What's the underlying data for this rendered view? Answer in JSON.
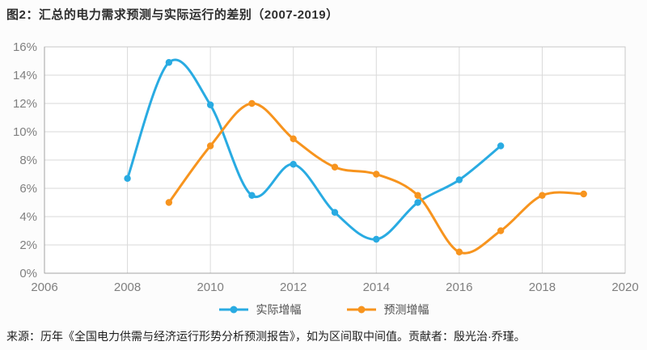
{
  "title": "图2：汇总的电力需求预测与实际运行的差别（2007-2019）",
  "source_note": "来源：历年《全国电力供需与经济运行形势分析预测报告》，如为区间取中间值。贡献者：殷光治·乔瑾。",
  "colors": {
    "actual_series": "#29abe2",
    "forecast_series": "#f7941e",
    "grid_line": "#dadada",
    "plot_border": "#c9c9c9",
    "axis_line": "#a3a3a3",
    "tick_label": "#7f7f7f",
    "plot_background": "#ffffff",
    "page_background": "#fcfcfc"
  },
  "chart_data": {
    "type": "line",
    "title": "图2：汇总的电力需求预测与实际运行的差别（2007-2019）",
    "xlabel": "",
    "ylabel": "",
    "xlim": [
      2006,
      2020
    ],
    "ylim": [
      0,
      16
    ],
    "x_ticks": [
      2006,
      2008,
      2010,
      2012,
      2014,
      2016,
      2018,
      2020
    ],
    "y_ticks": [
      "0%",
      "2%",
      "4%",
      "6%",
      "8%",
      "10%",
      "12%",
      "14%",
      "16%"
    ],
    "grid": true,
    "legend_position": "bottom",
    "series": [
      {
        "name": "实际增幅",
        "color": "#29abe2",
        "x": [
          2008,
          2009,
          2010,
          2011,
          2012,
          2013,
          2014,
          2015,
          2016,
          2017
        ],
        "values": [
          6.7,
          14.9,
          11.9,
          5.5,
          7.7,
          4.3,
          2.4,
          5.0,
          6.6,
          9.0
        ]
      },
      {
        "name": "预测增幅",
        "color": "#f7941e",
        "x": [
          2009,
          2010,
          2011,
          2012,
          2013,
          2014,
          2015,
          2016,
          2017,
          2018,
          2019
        ],
        "values": [
          5.0,
          9.0,
          12.0,
          9.5,
          7.5,
          7.0,
          5.5,
          1.5,
          3.0,
          5.5,
          5.6
        ]
      }
    ]
  }
}
